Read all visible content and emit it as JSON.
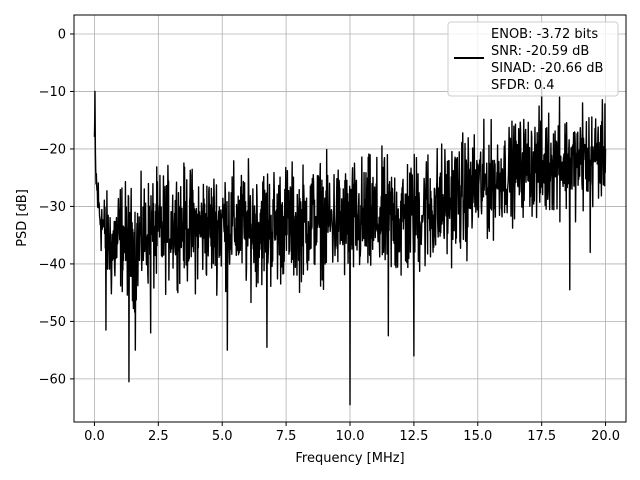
{
  "chart_data": {
    "type": "line",
    "title": "",
    "xlabel": "Frequency [MHz]",
    "ylabel": "PSD [dB]",
    "xlim": [
      -0.8,
      20.8
    ],
    "ylim": [
      -67.5,
      3.3
    ],
    "xticks": [
      0.0,
      2.5,
      5.0,
      7.5,
      10.0,
      12.5,
      15.0,
      17.5,
      20.0
    ],
    "xtick_labels": [
      "0.0",
      "2.5",
      "5.0",
      "7.5",
      "10.0",
      "12.5",
      "15.0",
      "17.5",
      "20.0"
    ],
    "yticks": [
      0,
      -10,
      -20,
      -30,
      -40,
      -50,
      -60
    ],
    "ytick_labels": [
      "0",
      "−10",
      "−20",
      "−30",
      "−40",
      "−50",
      "−60"
    ],
    "grid": true,
    "legend_position": "top-right",
    "legend_lines": [
      "ENOB: -3.72 bits",
      "SNR: -20.59 dB",
      "SINAD: -20.66 dB",
      "SFDR: 0.4"
    ],
    "series": [
      {
        "color": "#000000",
        "envelope": {
          "x": [
            0.0,
            0.05,
            0.1,
            0.2,
            0.3,
            0.5,
            0.7,
            1.0,
            1.3,
            1.6,
            2.0,
            2.5,
            3.0,
            3.5,
            4.0,
            4.5,
            5.0,
            5.5,
            6.0,
            6.5,
            7.0,
            7.5,
            8.0,
            8.5,
            9.0,
            9.5,
            10.0,
            10.5,
            11.0,
            11.5,
            12.0,
            12.5,
            13.0,
            13.5,
            14.0,
            14.5,
            15.0,
            15.5,
            16.0,
            16.5,
            17.0,
            17.5,
            18.0,
            18.5,
            19.0,
            19.5,
            20.0
          ],
          "upper": [
            -10,
            -18,
            -22,
            -24,
            -25,
            -26,
            -25,
            -23,
            -24,
            -25,
            -23,
            -22,
            -21,
            -21,
            -21,
            -22,
            -20,
            -21,
            -21,
            -20,
            -20,
            -20,
            -21,
            -20,
            -20,
            -20,
            -20,
            -19,
            -19,
            -19,
            -18,
            -18,
            -17,
            -17,
            -16,
            -15,
            -15,
            -14,
            -15,
            -13,
            -12,
            -12,
            -11,
            -12,
            -12,
            -11,
            -11
          ],
          "lower": [
            -27,
            -30,
            -33,
            -38,
            -41,
            -45,
            -50,
            -47,
            -48,
            -50,
            -46,
            -48,
            -45,
            -45,
            -47,
            -45,
            -46,
            -45,
            -47,
            -46,
            -47,
            -45,
            -46,
            -44,
            -45,
            -45,
            -46,
            -46,
            -46,
            -45,
            -47,
            -45,
            -44,
            -43,
            -41,
            -41,
            -38,
            -38,
            -34,
            -34,
            -33,
            -35,
            -33,
            -33,
            -33,
            -32,
            -30
          ]
        },
        "dips": [
          {
            "x": 0.45,
            "y": -51.5
          },
          {
            "x": 1.35,
            "y": -60.5
          },
          {
            "x": 1.6,
            "y": -55
          },
          {
            "x": 2.2,
            "y": -52
          },
          {
            "x": 5.2,
            "y": -55
          },
          {
            "x": 6.75,
            "y": -54.5
          },
          {
            "x": 10.0,
            "y": -64.5
          },
          {
            "x": 11.5,
            "y": -52.5
          },
          {
            "x": 12.5,
            "y": -56
          },
          {
            "x": 18.6,
            "y": -44.5
          },
          {
            "x": 19.4,
            "y": -38
          }
        ],
        "peaks": [
          {
            "x": 0.02,
            "y": -10
          },
          {
            "x": 17.5,
            "y": -9
          },
          {
            "x": 18.2,
            "y": -11
          },
          {
            "x": 19.1,
            "y": -12
          }
        ]
      }
    ]
  }
}
